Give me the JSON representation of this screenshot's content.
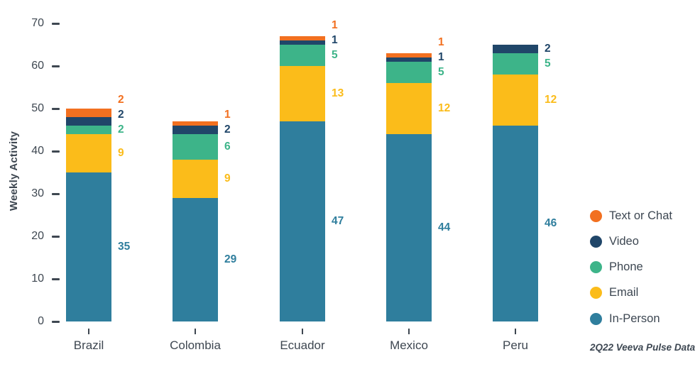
{
  "chart_data": {
    "type": "bar",
    "stacked": true,
    "title": "",
    "xlabel": "",
    "ylabel": "Weekly Activity",
    "ylim": [
      0,
      70
    ],
    "yticks": [
      0,
      10,
      20,
      30,
      40,
      50,
      60,
      70
    ],
    "grid": false,
    "categories": [
      "Brazil",
      "Colombia",
      "Ecuador",
      "Mexico",
      "Peru"
    ],
    "series": [
      {
        "name": "In-Person",
        "color": "#2F7E9D",
        "values": [
          35,
          29,
          47,
          44,
          46
        ]
      },
      {
        "name": "Email",
        "color": "#FBBC1A",
        "values": [
          9,
          9,
          13,
          12,
          12
        ]
      },
      {
        "name": "Phone",
        "color": "#3DB489",
        "values": [
          2,
          6,
          5,
          5,
          5
        ]
      },
      {
        "name": "Video",
        "color": "#204669",
        "values": [
          2,
          2,
          1,
          1,
          2
        ]
      },
      {
        "name": "Text or Chat",
        "color": "#F27020",
        "values": [
          2,
          1,
          1,
          1,
          null
        ]
      }
    ],
    "bar_totals": [
      50,
      47,
      67,
      63,
      65
    ],
    "legend": {
      "position": "right",
      "order_top_to_bottom": [
        "Text or Chat",
        "Video",
        "Phone",
        "Email",
        "In-Person"
      ]
    },
    "value_labels_shown": true,
    "axis_text_color": "#3E4751",
    "source_note": "2Q22 Veeva Pulse Data"
  }
}
